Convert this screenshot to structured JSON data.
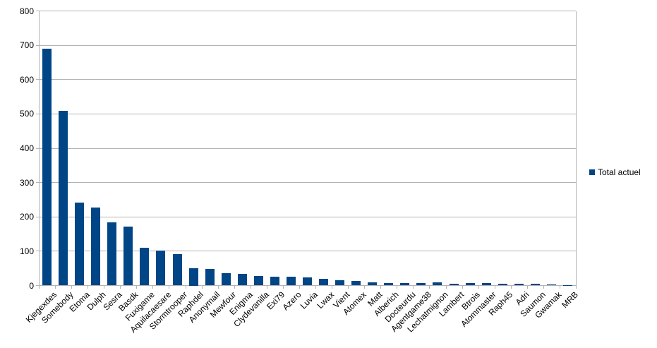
{
  "chart_data": {
    "type": "bar",
    "title": "",
    "xlabel": "",
    "ylabel": "",
    "categories": [
      "Kjegexdes",
      "Somebody",
      "Etoma",
      "Dulph",
      "Sesra",
      "Basdk",
      "Fuxigame",
      "Aquilacaesare",
      "Stormtrooper",
      "Raphdel",
      "Anonymail",
      "Mewfour",
      "Enigma",
      "Clydevanilla",
      "Exi79",
      "Azero",
      "Luvia",
      "Lwax",
      "Vient",
      "Atomex",
      "Matt",
      "Alberich",
      "Docteurdu",
      "Agentgame38",
      "Lechatmignon",
      "Lambert",
      "Btrois",
      "Atommaster",
      "Raph45",
      "Adri",
      "Saumon",
      "Gwamak",
      "MRB"
    ],
    "series": [
      {
        "name": "Total actuel",
        "values": [
          690,
          510,
          242,
          227,
          184,
          171,
          110,
          101,
          91,
          50,
          48,
          36,
          34,
          27,
          26,
          26,
          23,
          20,
          15,
          13,
          10,
          7,
          8,
          8,
          9,
          6,
          8,
          7,
          5,
          5,
          6,
          3,
          2
        ]
      }
    ],
    "ylim": [
      0,
      800
    ],
    "yticks": [
      0,
      100,
      200,
      300,
      400,
      500,
      600,
      700,
      800
    ],
    "grid": true,
    "legend_position": "right",
    "x_label_rotation_deg": 45
  },
  "legend": {
    "label": "Total actuel",
    "swatch_icon": "square"
  },
  "colors": {
    "bar": "#004586",
    "grid": "#b3b3b3",
    "axis": "#b3b3b3",
    "text": "#000000",
    "background": "#ffffff"
  }
}
